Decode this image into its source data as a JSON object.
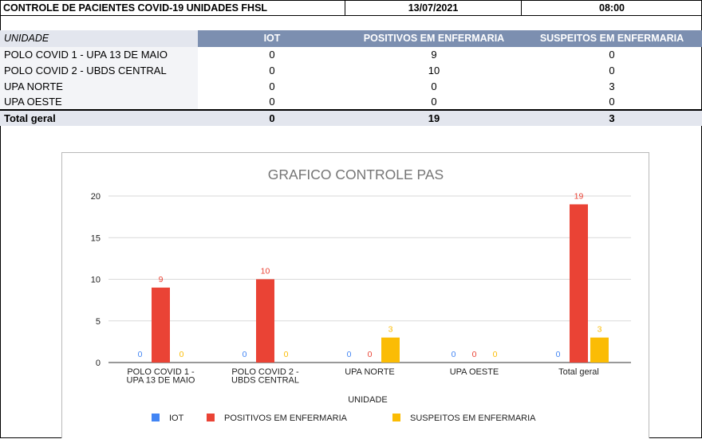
{
  "header": {
    "title": "CONTROLE DE PACIENTES COVID-19 UNIDADES FHSL",
    "date": "13/07/2021",
    "time": "08:00"
  },
  "table": {
    "columns": [
      "UNIDADE",
      "IOT",
      "POSITIVOS EM ENFERMARIA",
      "SUSPEITOS EM ENFERMARIA"
    ],
    "rows": [
      {
        "unit": "POLO COVID 1 - UPA 13 DE MAIO",
        "iot": "0",
        "pos": "9",
        "susp": "0"
      },
      {
        "unit": "POLO COVID 2 - UBDS CENTRAL",
        "iot": "0",
        "pos": "10",
        "susp": "0"
      },
      {
        "unit": "UPA NORTE",
        "iot": "0",
        "pos": "0",
        "susp": "3"
      },
      {
        "unit": "UPA OESTE",
        "iot": "0",
        "pos": "0",
        "susp": "0"
      }
    ],
    "total": {
      "label": "Total geral",
      "iot": "0",
      "pos": "19",
      "susp": "3"
    }
  },
  "chart_data": {
    "type": "bar",
    "title": "GRAFICO CONTROLE PAS",
    "xlabel": "UNIDADE",
    "ylabel": "",
    "ylim": [
      0,
      20
    ],
    "yticks": [
      0,
      5,
      10,
      15,
      20
    ],
    "categories": [
      [
        "POLO COVID 1 -",
        "UPA 13 DE MAIO"
      ],
      [
        "POLO COVID 2 -",
        "UBDS CENTRAL"
      ],
      [
        "UPA NORTE"
      ],
      [
        "UPA OESTE"
      ],
      [
        "Total geral"
      ]
    ],
    "series": [
      {
        "name": "IOT",
        "color": "#4285f4",
        "values": [
          0,
          0,
          0,
          0,
          0
        ]
      },
      {
        "name": "POSITIVOS EM ENFERMARIA",
        "color": "#ea4335",
        "values": [
          9,
          10,
          0,
          0,
          19
        ]
      },
      {
        "name": "SUSPEITOS EM ENFERMARIA",
        "color": "#fbbc04",
        "values": [
          0,
          0,
          3,
          0,
          3
        ]
      }
    ],
    "grid": true,
    "legend_position": "bottom"
  }
}
